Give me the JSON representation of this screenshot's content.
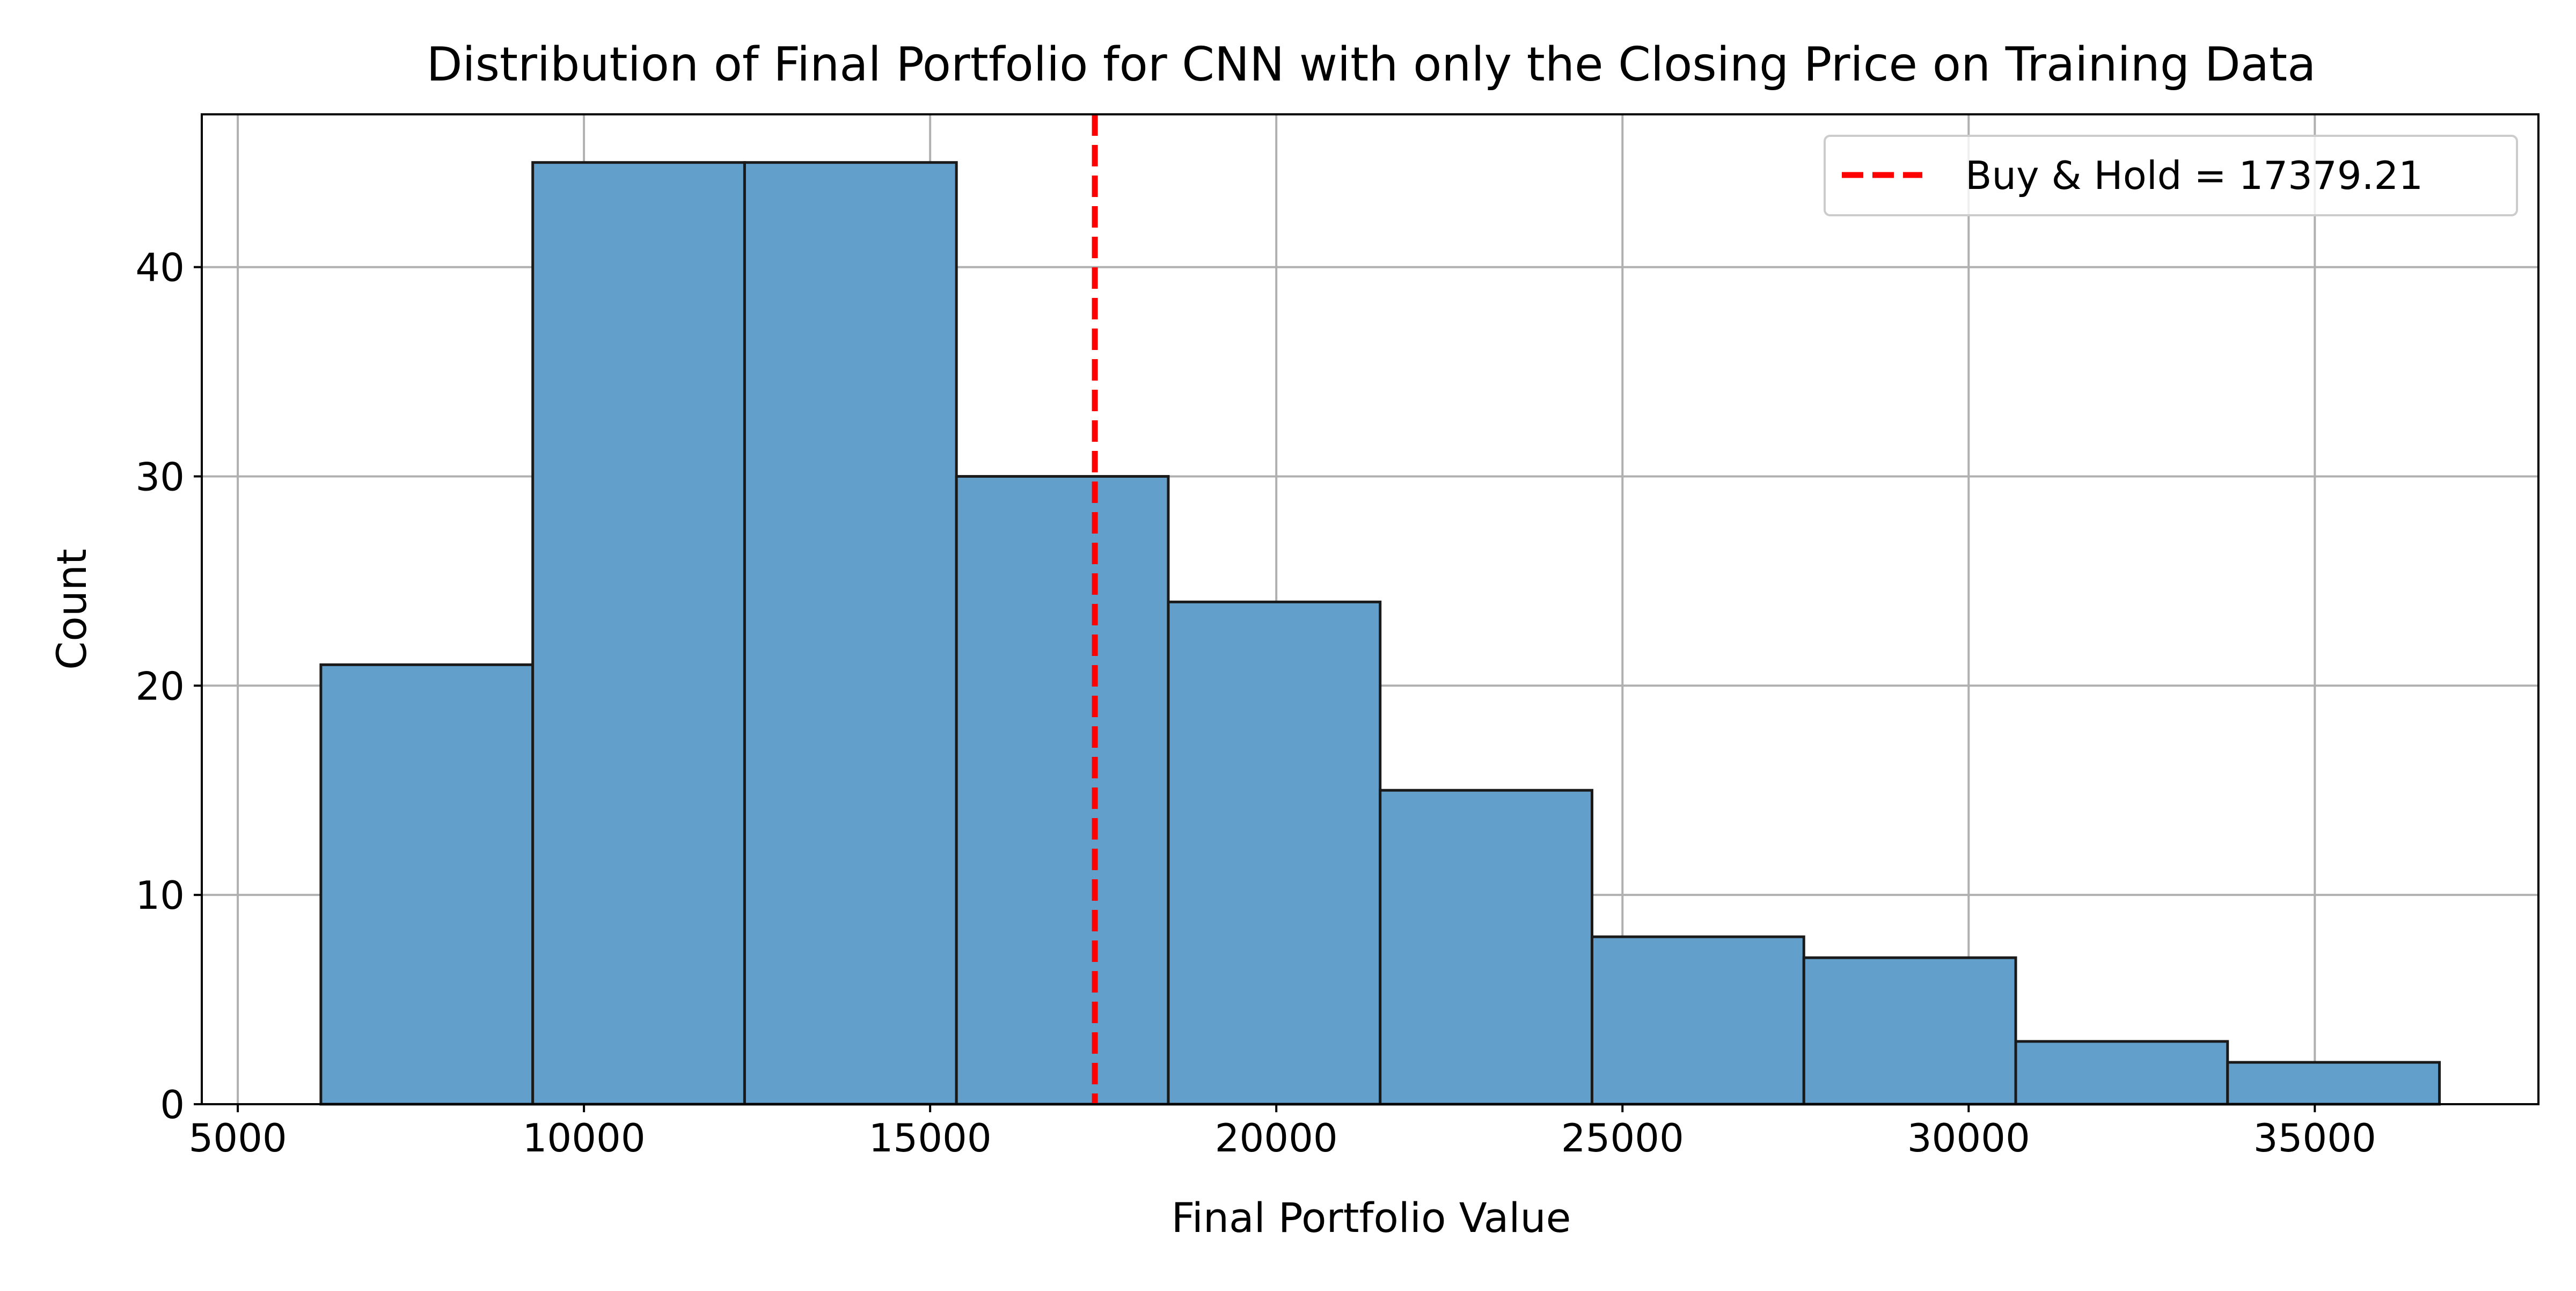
{
  "chart_data": {
    "type": "bar",
    "title": "Distribution of Final Portfolio for CNN with only the Closing Price on Training Data",
    "xlabel": "Final Portfolio Value",
    "ylabel": "Count",
    "xlim": [
      4480,
      38230
    ],
    "ylim": [
      0,
      47.3
    ],
    "xticks": [
      5000,
      10000,
      15000,
      20000,
      25000,
      30000,
      35000
    ],
    "yticks": [
      0,
      10,
      20,
      30,
      40
    ],
    "grid": true,
    "bins": [
      {
        "x0": 6200,
        "x1": 9260,
        "count": 21
      },
      {
        "x0": 9260,
        "x1": 12320,
        "count": 45
      },
      {
        "x0": 12320,
        "x1": 15380,
        "count": 45
      },
      {
        "x0": 15380,
        "x1": 18440,
        "count": 30
      },
      {
        "x0": 18440,
        "x1": 21500,
        "count": 24
      },
      {
        "x0": 21500,
        "x1": 24560,
        "count": 15
      },
      {
        "x0": 24560,
        "x1": 27620,
        "count": 8
      },
      {
        "x0": 27620,
        "x1": 30680,
        "count": 7
      },
      {
        "x0": 30680,
        "x1": 33740,
        "count": 3
      },
      {
        "x0": 33740,
        "x1": 36800,
        "count": 2
      }
    ],
    "reference_line": {
      "x": 17379.21,
      "label": "Buy & Hold = 17379.21",
      "color": "#ff0000",
      "style": "dashed"
    },
    "bar_color": "#62a0cb",
    "edge_color": "#1a1a1a",
    "legend_position": "top-right"
  }
}
